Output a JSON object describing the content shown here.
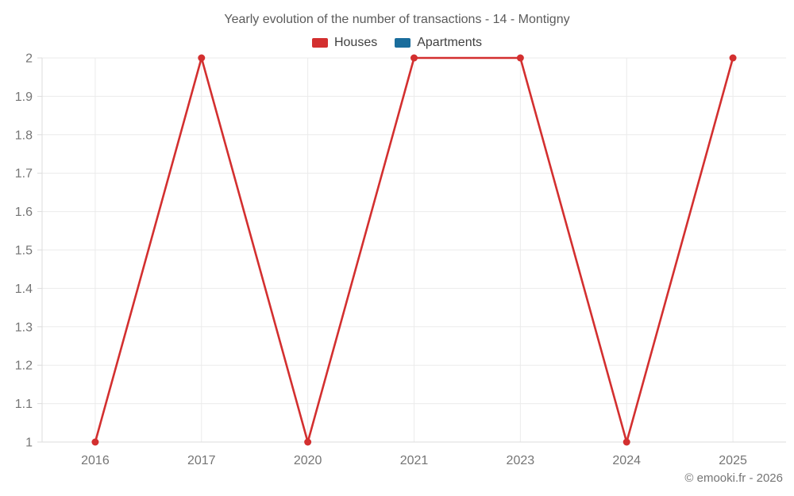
{
  "chart_data": {
    "type": "line",
    "title": "Yearly evolution of the number of transactions - 14 - Montigny",
    "categories": [
      "2016",
      "2017",
      "2020",
      "2021",
      "2023",
      "2024",
      "2025"
    ],
    "series": [
      {
        "name": "Houses",
        "color": "#d32f2f",
        "values": [
          1,
          2,
          1,
          2,
          2,
          1,
          2
        ]
      },
      {
        "name": "Apartments",
        "color": "#1a6d9c",
        "values": []
      }
    ],
    "xlabel": "",
    "ylabel": "",
    "ylim": [
      1,
      2
    ],
    "ytick_step": 0.1,
    "ytick_labels": [
      "1",
      "1.1",
      "1.2",
      "1.3",
      "1.4",
      "1.5",
      "1.6",
      "1.7",
      "1.8",
      "1.9",
      "2"
    ],
    "grid": true,
    "legend_position": "top",
    "footer": "© emooki.fr - 2026",
    "colors": {
      "gridline": "#ebebeb",
      "axis_line": "#dcdcdc",
      "tick_text": "#757575",
      "title_text": "#5b5b5b",
      "legend_text": "#3f3f3f"
    }
  }
}
